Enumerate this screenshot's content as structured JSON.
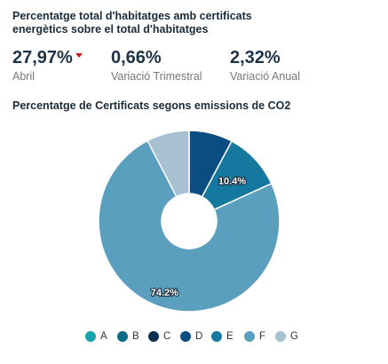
{
  "header": {
    "title": "Percentatge total d'habitatges amb certificats energètics sobre el total d'habitatges"
  },
  "kpis": [
    {
      "value": "27,97%",
      "label": "Abril",
      "trend": "down"
    },
    {
      "value": "0,66%",
      "label": "Variació Trimestral"
    },
    {
      "value": "2,32%",
      "label": "Variació Anual"
    }
  ],
  "chart_data": {
    "type": "pie",
    "title": "Percentatge de Certificats segons emissions de CO2",
    "donut": true,
    "legend_position": "bottom",
    "slices": [
      {
        "name": "A",
        "value": 0.0,
        "color": "#16a3ae",
        "label": ""
      },
      {
        "name": "B",
        "value": 0.0,
        "color": "#0c6b86",
        "label": ""
      },
      {
        "name": "C",
        "value": 0.0,
        "color": "#0d2f52",
        "label": ""
      },
      {
        "name": "D",
        "value": 7.8,
        "color": "#0b4d80",
        "label": ""
      },
      {
        "name": "E",
        "value": 10.4,
        "color": "#15789f",
        "label": "10.4%"
      },
      {
        "name": "F",
        "value": 74.2,
        "color": "#5b9fbf",
        "label": "74.2%"
      },
      {
        "name": "G",
        "value": 7.6,
        "color": "#a7c0d2",
        "label": ""
      }
    ]
  }
}
